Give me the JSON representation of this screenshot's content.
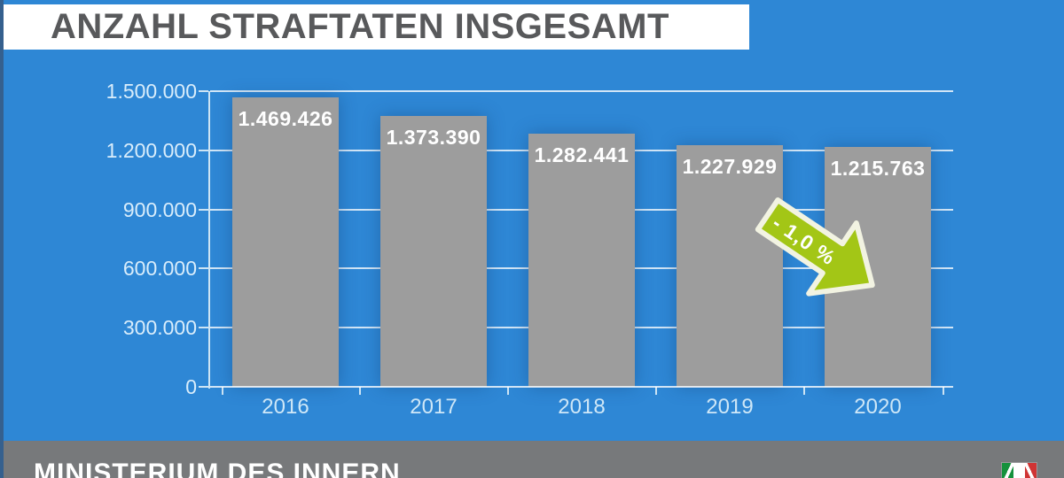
{
  "title": "ANZAHL STRAFTATEN INSGESAMT",
  "footer": {
    "label": "MINISTERIUM DES INNERN"
  },
  "logo": {
    "name": "nrw-state-logo",
    "stripe_colors": [
      "#15913c",
      "#ffffff",
      "#d03434"
    ]
  },
  "colors": {
    "background": "#2e87d5",
    "edge_strip": "#35608e",
    "title_band": "#ffffff",
    "title_text": "#58595b",
    "bar_fill": "#9d9d9d",
    "bar_label": "#ffffff",
    "axis": "#cde4f4",
    "tick_label": "#d9edfb",
    "x_label": "#cfe8f8",
    "footer_band": "#77797b",
    "footer_text": "#ffffff",
    "arrow_fill": "#a3c616",
    "arrow_outline": "#f2f3e2"
  },
  "chart_data": {
    "type": "bar",
    "title": "ANZAHL STRAFTATEN INSGESAMT",
    "categories": [
      "2016",
      "2017",
      "2018",
      "2019",
      "2020"
    ],
    "values": [
      1469426,
      1373390,
      1282441,
      1227929,
      1215763
    ],
    "bar_labels": [
      "1.469.426",
      "1.373.390",
      "1.282.441",
      "1.227.929",
      "1.215.763"
    ],
    "xlabel": "",
    "ylabel": "",
    "ylim": [
      0,
      1500000
    ],
    "y_tick_interval": 300000,
    "y_ticks": [
      {
        "value": 1500000,
        "label": "1.500.000"
      },
      {
        "value": 1200000,
        "label": "1.200.000"
      },
      {
        "value": 900000,
        "label": "900.000"
      },
      {
        "value": 600000,
        "label": "600.000"
      },
      {
        "value": 300000,
        "label": "300.000"
      },
      {
        "value": 0,
        "label": "0"
      }
    ],
    "grid": true,
    "legend": false,
    "annotation": {
      "label": "- 1,0 %",
      "shape": "arrow-down-right"
    }
  }
}
